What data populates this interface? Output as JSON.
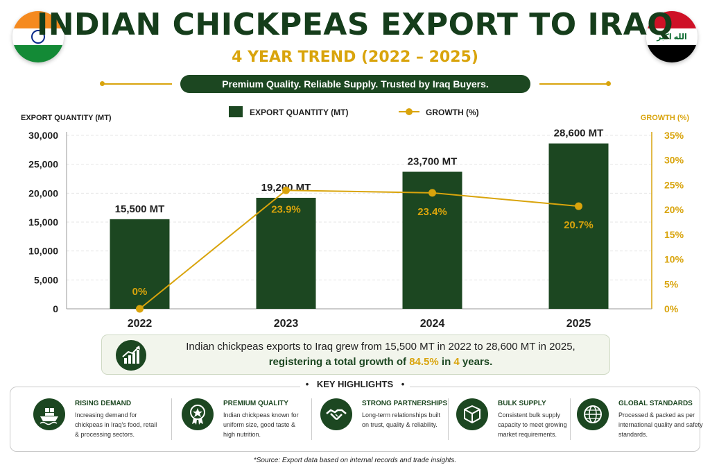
{
  "header": {
    "title": "INDIAN CHICKPEAS EXPORT TO IRAQ",
    "subtitle": "4 YEAR TREND (2022 – 2025)",
    "tagline": "Premium Quality. Reliable Supply. Trusted by Iraq Buyers.",
    "flag_text_iraq": "الله اكبر"
  },
  "colors": {
    "bar": "#1c4721",
    "line": "#d9a40c",
    "grid": "#e4e4e4",
    "right_axis": "#d9a40c"
  },
  "chart_data": {
    "type": "bar",
    "categories": [
      "2022",
      "2023",
      "2024",
      "2025"
    ],
    "series": [
      {
        "name": "EXPORT QUANTITY (MT)",
        "type": "bar",
        "axis": "left",
        "values": [
          15500,
          19200,
          23700,
          28600
        ],
        "labels": [
          "15,500 MT",
          "19,200 MT",
          "23,700 MT",
          "28,600 MT"
        ]
      },
      {
        "name": "GROWTH (%)",
        "type": "line",
        "axis": "right",
        "values": [
          0,
          23.9,
          23.4,
          20.7
        ],
        "labels": [
          "0%",
          "23.9%",
          "23.4%",
          "20.7%"
        ]
      }
    ],
    "ylabel": "EXPORT QUANTITY (MT)",
    "ylabel_right": "GROWTH (%)",
    "ylim": [
      0,
      30000
    ],
    "ylim_right": [
      0,
      35
    ],
    "yticks": [
      "0",
      "5,000",
      "10,000",
      "15,000",
      "20,000",
      "25,000",
      "30,000"
    ],
    "yticks_right": [
      "0%",
      "5%",
      "10%",
      "15%",
      "20%",
      "25%",
      "30%",
      "35%"
    ],
    "grid": true,
    "legend": "top-center"
  },
  "summary": {
    "line1": "Indian chickpeas exports to Iraq grew from 15,500 MT in 2022 to 28,600 MT in 2025,",
    "line2_a": "registering a total growth of ",
    "line2_pct": "84.5%",
    "line2_b": " in ",
    "line2_years": "4",
    "line2_c": " years.",
    "icon": "growth-chart-icon"
  },
  "highlights": {
    "heading": "KEY HIGHLIGHTS",
    "items": [
      {
        "title": "RISING DEMAND",
        "desc": "Increasing demand for chickpeas in Iraq's food, retail & processing sectors.",
        "icon": "cargo-ship-icon"
      },
      {
        "title": "PREMIUM QUALITY",
        "desc": "Indian chickpeas known for uniform size, good taste & high nutrition.",
        "icon": "quality-badge-icon"
      },
      {
        "title": "STRONG PARTNERSHIPS",
        "desc": "Long-term relationships built on trust, quality & reliability.",
        "icon": "handshake-icon"
      },
      {
        "title": "BULK SUPPLY",
        "desc": "Consistent bulk supply capacity to meet growing market requirements.",
        "icon": "box-icon"
      },
      {
        "title": "GLOBAL STANDARDS",
        "desc": "Processed & packed as per international quality and safety standards.",
        "icon": "globe-icon"
      }
    ]
  },
  "footer": {
    "source": "*Source: Export data based on internal records and trade insights."
  }
}
